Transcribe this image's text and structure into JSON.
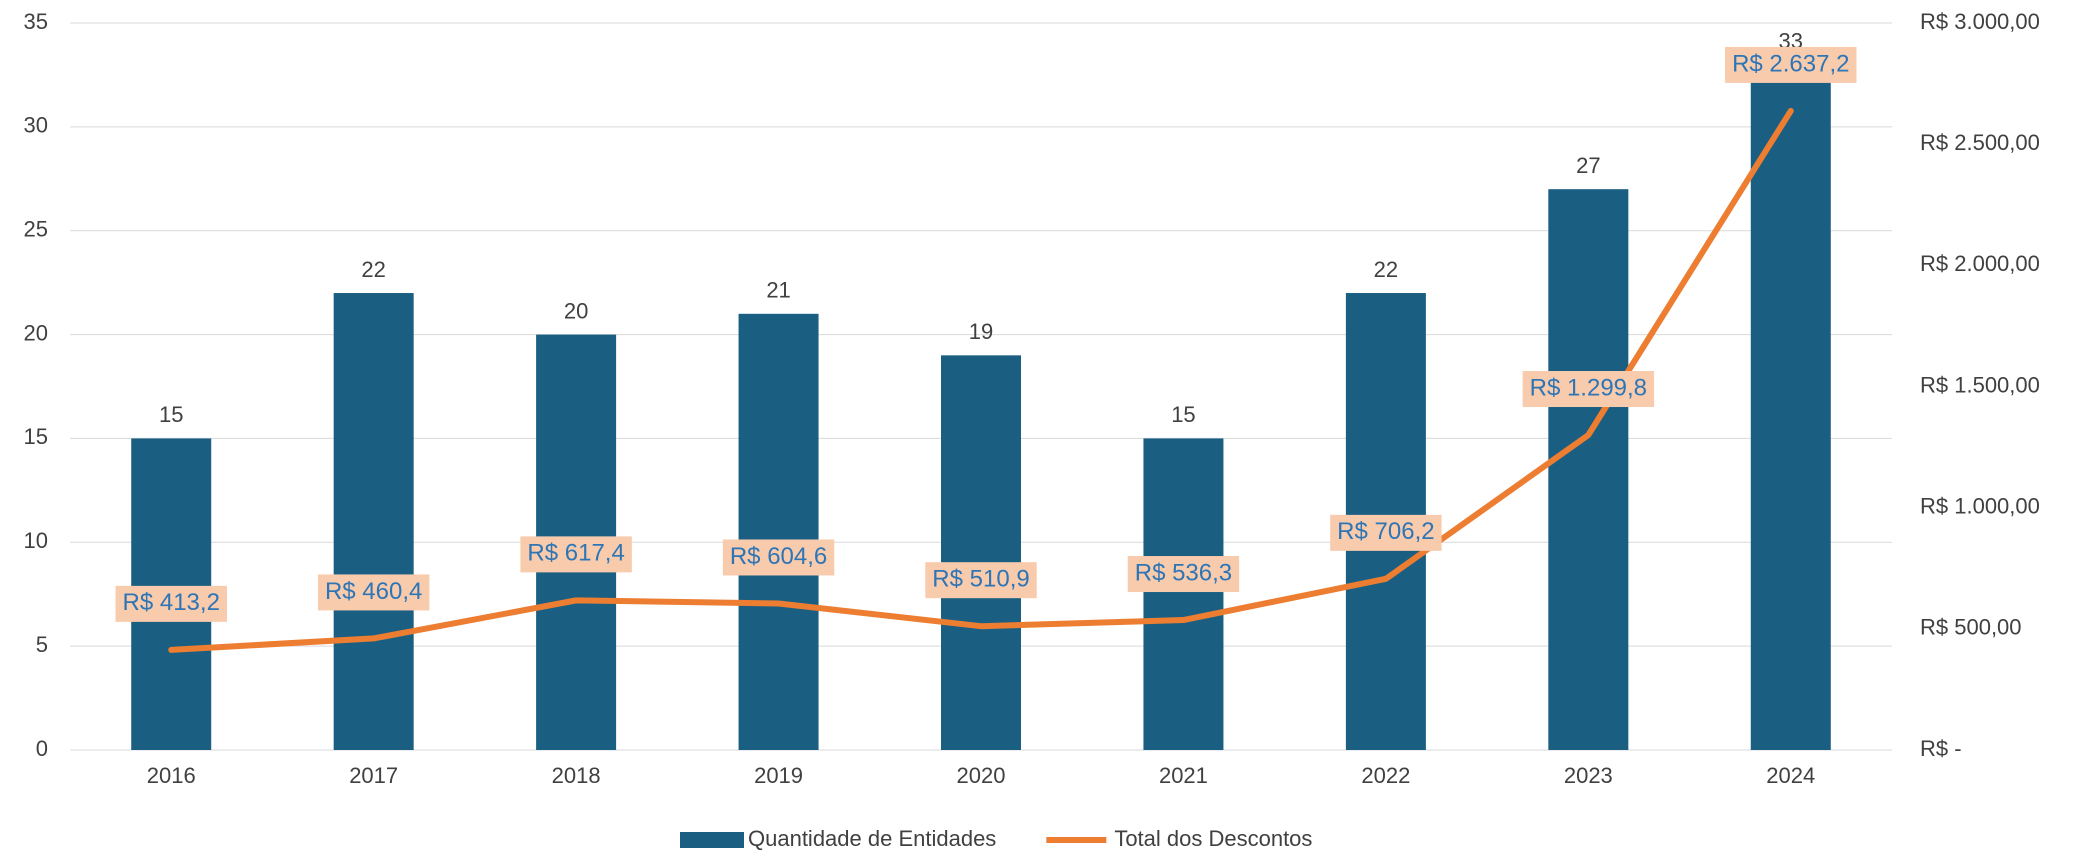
{
  "chart_data": {
    "type": "bar",
    "categories": [
      "2016",
      "2017",
      "2018",
      "2019",
      "2020",
      "2021",
      "2022",
      "2023",
      "2024"
    ],
    "series": [
      {
        "name": "Quantidade de Entidades",
        "type": "bar",
        "color": "#1a5f82",
        "values": [
          15,
          22,
          20,
          21,
          19,
          15,
          22,
          27,
          33
        ]
      },
      {
        "name": "Total dos Descontos",
        "type": "line",
        "axis": "y2",
        "color": "#ed7d31",
        "values": [
          413.2,
          460.4,
          617.4,
          604.6,
          510.9,
          536.3,
          706.2,
          1299.8,
          2637.2
        ],
        "value_labels": [
          "R$ 413,2",
          "R$ 460,4",
          "R$ 617,4",
          "R$ 604,6",
          "R$ 510,9",
          "R$ 536,3",
          "R$ 706,2",
          "R$ 1.299,8",
          "R$ 2.637,2"
        ]
      }
    ],
    "ylim": [
      0,
      35
    ],
    "yticks": [
      0,
      5,
      10,
      15,
      20,
      25,
      30,
      35
    ],
    "y2lim": [
      0,
      3000
    ],
    "y2ticks": [
      {
        "value": 0,
        "label": "R$ -"
      },
      {
        "value": 500,
        "label": "R$ 500,00"
      },
      {
        "value": 1000,
        "label": "R$ 1.000,00"
      },
      {
        "value": 1500,
        "label": "R$ 1.500,00"
      },
      {
        "value": 2000,
        "label": "R$ 2.000,00"
      },
      {
        "value": 2500,
        "label": "R$ 2.500,00"
      },
      {
        "value": 3000,
        "label": "R$ 3.000,00"
      }
    ],
    "grid": true,
    "legend": "bottom"
  }
}
